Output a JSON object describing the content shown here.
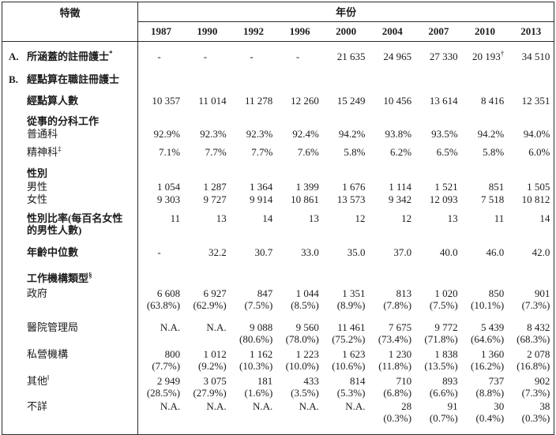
{
  "table": {
    "header": {
      "characteristic": "特徵",
      "year": "年份",
      "years": [
        "1987",
        "1990",
        "1992",
        "1996",
        "2000",
        "2004",
        "2007",
        "2010",
        "2013"
      ]
    },
    "rows": [
      {
        "name": "covered-registered-nurses",
        "prefix": "A.",
        "label": "所涵蓋的註冊護士",
        "label_sup": "*",
        "bold": true,
        "values": [
          "-",
          "-",
          "-",
          "-",
          "21 635",
          "24 965",
          "27 330",
          "20 193^†",
          "34 510"
        ]
      },
      {
        "name": "enumerated-employed",
        "prefix": "B.",
        "label": "經點算在職註冊護士",
        "bold": true,
        "values": null
      },
      {
        "name": "number-enumerated",
        "label": "經點算人數",
        "bold": true,
        "values": [
          "10 357",
          "11 014",
          "11 278",
          "12 260",
          "15 249",
          "10 456",
          "13 614",
          "8 416",
          "12 351"
        ]
      },
      {
        "name": "branch-of-work",
        "label": "從事的分科工作",
        "bold": true,
        "values": null
      },
      {
        "name": "general-stream",
        "label": "普通科",
        "bold": false,
        "values": [
          "92.9%",
          "92.3%",
          "92.3%",
          "92.4%",
          "94.2%",
          "93.8%",
          "93.5%",
          "94.2%",
          "94.0%"
        ]
      },
      {
        "name": "psychiatric-stream",
        "label": "精神科",
        "label_sup": "‡",
        "bold": false,
        "values": [
          "7.1%",
          "7.7%",
          "7.7%",
          "7.6%",
          "5.8%",
          "6.2%",
          "6.5%",
          "5.8%",
          "6.0%"
        ]
      },
      {
        "name": "sex",
        "label": "性別",
        "bold": true,
        "values": null
      },
      {
        "name": "male",
        "label": "男性",
        "bold": false,
        "values": [
          "1 054",
          "1 287",
          "1 364",
          "1 399",
          "1 676",
          "1 114",
          "1 521",
          "851",
          "1 505"
        ]
      },
      {
        "name": "female",
        "label": "女性",
        "bold": false,
        "values": [
          "9 303",
          "9 727",
          "9 914",
          "10 861",
          "13 573",
          "9 342",
          "12 093",
          "7 518",
          "10 812"
        ]
      },
      {
        "name": "sex-ratio",
        "label": "性別比率(每百名女性",
        "label2": "的男性人數)",
        "bold": true,
        "values": [
          "11",
          "13",
          "14",
          "13",
          "12",
          "12",
          "13",
          "11",
          "14"
        ]
      },
      {
        "name": "median-age",
        "label": "年齡中位數",
        "bold": true,
        "values": [
          "-",
          "32.2",
          "30.7",
          "33.0",
          "35.0",
          "37.0",
          "40.0",
          "46.0",
          "42.0"
        ]
      },
      {
        "name": "org-type",
        "label": "工作機構類型",
        "label_sup": "§",
        "bold": true,
        "values": null
      },
      {
        "name": "government",
        "label": "政府",
        "bold": false,
        "values": [
          "6 608",
          "6 927",
          "847",
          "1 044",
          "1 351",
          "813",
          "1 020",
          "850",
          "901"
        ],
        "pct": [
          "(63.8%)",
          "(62.9%)",
          "(7.5%)",
          "(8.5%)",
          "(8.9%)",
          "(7.8%)",
          "(7.5%)",
          "(10.1%)",
          "(7.3%)"
        ]
      },
      {
        "name": "hospital-authority",
        "label": "醫院管理局",
        "bold": false,
        "values": [
          "N.A.",
          "N.A.",
          "9 088",
          "9 560",
          "11 461",
          "7 675",
          "9 772",
          "5 439",
          "8 432"
        ],
        "pct": [
          "",
          "",
          "(80.6%)",
          "(78.0%)",
          "(75.2%)",
          "(73.4%)",
          "(71.8%)",
          "(64.6%)",
          "(68.3%)"
        ]
      },
      {
        "name": "private-institutions",
        "label": "私營機構",
        "bold": false,
        "values": [
          "800",
          "1 012",
          "1 162",
          "1 223",
          "1 623",
          "1 230",
          "1 838",
          "1 360",
          "2 078"
        ],
        "pct": [
          "(7.7%)",
          "(9.2%)",
          "(10.3%)",
          "(10.0%)",
          "(10.6%)",
          "(11.8%)",
          "(13.5%)",
          "(16.2%)",
          "(16.8%)"
        ]
      },
      {
        "name": "others",
        "label": "其他",
        "label_sup": "‖",
        "bold": false,
        "values": [
          "2 949",
          "3 075",
          "181",
          "433",
          "814",
          "710",
          "893",
          "737",
          "902"
        ],
        "pct": [
          "(28.5%)",
          "(27.9%)",
          "(1.6%)",
          "(3.5%)",
          "(5.3%)",
          "(6.8%)",
          "(6.6%)",
          "(8.8%)",
          "(7.3%)"
        ]
      },
      {
        "name": "unknown",
        "label": "不詳",
        "bold": false,
        "values": [
          "N.A.",
          "N.A.",
          "N.A.",
          "N.A.",
          "N.A.",
          "28",
          "91",
          "30",
          "38"
        ],
        "pct": [
          "",
          "",
          "",
          "",
          "",
          "(0.3%)",
          "(0.7%)",
          "(0.4%)",
          "(0.3%)"
        ]
      }
    ]
  }
}
